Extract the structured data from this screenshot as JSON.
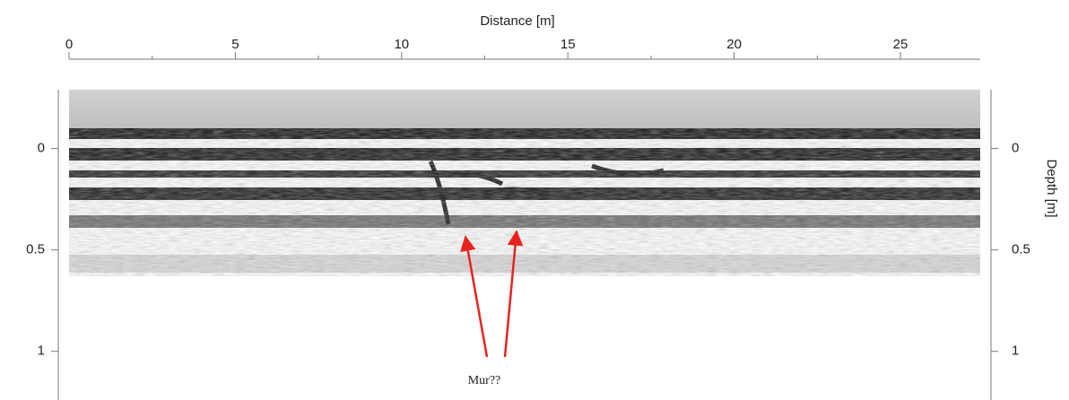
{
  "chart_data": {
    "type": "radargram",
    "xlabel": "Distance [m]",
    "ylabel": "Depth [m]",
    "xlim": [
      0,
      27.4
    ],
    "xticks": [
      0,
      5,
      10,
      15,
      20,
      25
    ],
    "ylim": [
      -0.29,
      1.24
    ],
    "yticks": [
      0,
      0.5,
      1
    ],
    "annotation": "Mur??",
    "annotation_color": "#e8231f",
    "grid": false
  }
}
